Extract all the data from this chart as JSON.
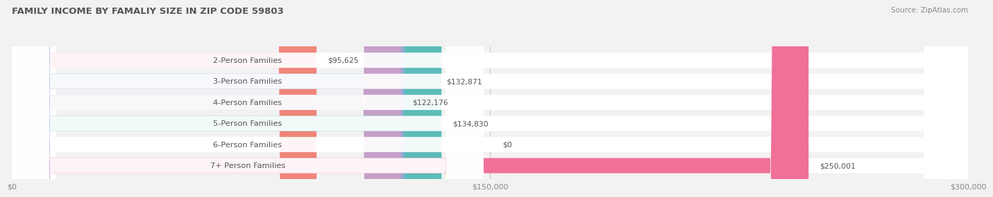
{
  "title": "FAMILY INCOME BY FAMALIY SIZE IN ZIP CODE 59803",
  "source": "Source: ZipAtlas.com",
  "categories": [
    "2-Person Families",
    "3-Person Families",
    "4-Person Families",
    "5-Person Families",
    "6-Person Families",
    "7+ Person Families"
  ],
  "values": [
    95625,
    132871,
    122176,
    134830,
    0,
    250001
  ],
  "bar_colors": [
    "#f0857a",
    "#91a8d8",
    "#c4a0c8",
    "#5bbcb8",
    "#b0b8e8",
    "#f07098"
  ],
  "value_labels": [
    "$95,625",
    "$132,871",
    "$122,176",
    "$134,830",
    "$0",
    "$250,001"
  ],
  "xlim": [
    0,
    300000
  ],
  "xticks": [
    0,
    150000,
    300000
  ],
  "xticklabels": [
    "$0",
    "$150,000",
    "$300,000"
  ],
  "background_color": "#f2f2f2",
  "title_color": "#555555",
  "source_color": "#888888",
  "label_text_color": "#555555"
}
